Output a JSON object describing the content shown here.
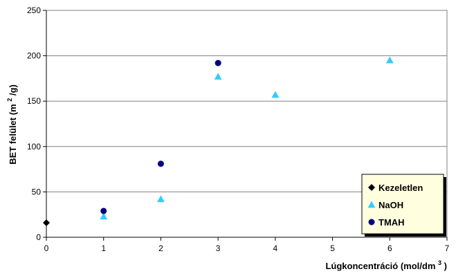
{
  "chart_data": {
    "type": "scatter",
    "xlabel": "Lúgkoncentráció (mol/dm",
    "xlabel_sup": "3",
    "xlabel_end": ")",
    "ylabel": "BET felület (m",
    "ylabel_sup": "2",
    "ylabel_end": "/g)",
    "xlim": [
      0,
      7
    ],
    "ylim": [
      0,
      250
    ],
    "x_ticks": [
      "0",
      "1",
      "2",
      "3",
      "4",
      "5",
      "6",
      "7"
    ],
    "y_ticks": [
      "0",
      "50",
      "100",
      "150",
      "200",
      "250"
    ],
    "grid": "horizontal",
    "legend_position": "bottom-right",
    "series": [
      {
        "name": "Kezeletlen",
        "marker": "diamond",
        "color": "#000000",
        "points": [
          {
            "x": 0,
            "y": 16
          }
        ]
      },
      {
        "name": "NaOH",
        "marker": "triangle",
        "color": "#33ccff",
        "points": [
          {
            "x": 1,
            "y": 23
          },
          {
            "x": 2,
            "y": 42
          },
          {
            "x": 3,
            "y": 177
          },
          {
            "x": 4,
            "y": 157
          },
          {
            "x": 6,
            "y": 195
          }
        ]
      },
      {
        "name": "TMAH",
        "marker": "circle",
        "color": "#000080",
        "points": [
          {
            "x": 1,
            "y": 29
          },
          {
            "x": 2,
            "y": 81
          },
          {
            "x": 3,
            "y": 192
          }
        ]
      }
    ]
  }
}
